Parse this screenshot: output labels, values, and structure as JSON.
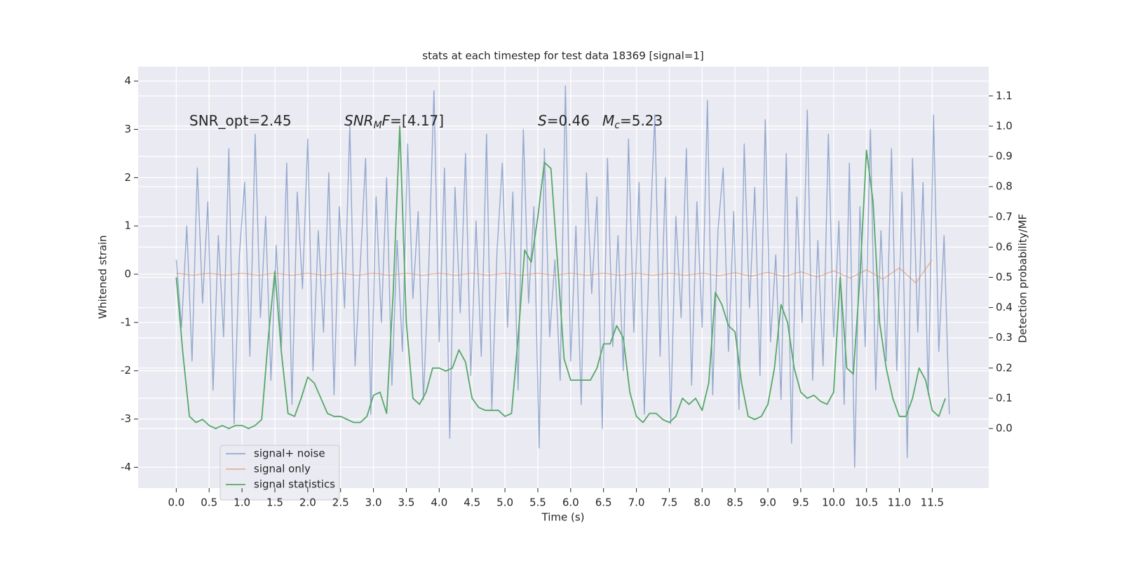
{
  "chart_data": {
    "type": "line",
    "title": "stats at each timestep for test data 18369 [signal=1]",
    "xlabel": "Time (s)",
    "ylabel": "Whitened strain",
    "y2label": "Detection probability/MF",
    "annotations": [
      [
        "SNR_opt=2.45"
      ],
      [
        "SNR",
        "M",
        "F",
        "=[4.17]"
      ],
      [
        "S",
        "=0.46",
        "M",
        "c",
        "=5.23"
      ]
    ],
    "xlim": [
      -0.58,
      12.36
    ],
    "xticks": [
      {
        "value": 0,
        "label": "0.0"
      },
      0.5,
      {
        "value": 1,
        "label": "1.0"
      },
      1.5,
      {
        "value": 2,
        "label": "2.0"
      },
      2.5,
      {
        "value": 3,
        "label": "3.0"
      },
      3.5,
      {
        "value": 4,
        "label": "4.0"
      },
      4.5,
      {
        "value": 5,
        "label": "5.0"
      },
      5.5,
      {
        "value": 6,
        "label": "6.0"
      },
      6.5,
      {
        "value": 7,
        "label": "7.0"
      },
      7.5,
      {
        "value": 8,
        "label": "8.0"
      },
      8.5,
      {
        "value": 9,
        "label": "9.0"
      },
      9.5,
      {
        "value": 10,
        "label": "10.0"
      },
      10.5,
      {
        "value": 11,
        "label": "11.0"
      },
      11.5
    ],
    "ylim": [
      -4.43,
      4.3
    ],
    "yticks": [
      -4,
      -3,
      -2,
      -1,
      0,
      1,
      2,
      3,
      4
    ],
    "y2lim": [
      -0.197,
      1.197
    ],
    "y2ticks": [
      {
        "value": 0,
        "label": "0.0"
      },
      0.1,
      0.2,
      0.3,
      0.4,
      0.5,
      0.6,
      0.7,
      0.8,
      0.9,
      {
        "value": 1,
        "label": "1.0"
      },
      1.1
    ],
    "grid": true,
    "legend": "lower left",
    "series": [
      {
        "name": "signal+ noise",
        "color": "#4c72b0",
        "x": [
          0,
          0.08,
          0.16,
          0.24,
          0.32,
          0.4,
          0.48,
          0.56,
          0.64,
          0.72,
          0.8,
          0.88,
          0.96,
          1.04,
          1.12,
          1.2,
          1.28,
          1.36,
          1.44,
          1.52,
          1.6,
          1.68,
          1.76,
          1.84,
          1.92,
          2.0,
          2.08,
          2.16,
          2.24,
          2.32,
          2.4,
          2.48,
          2.56,
          2.64,
          2.72,
          2.8,
          2.88,
          2.96,
          3.04,
          3.12,
          3.2,
          3.28,
          3.36,
          3.44,
          3.52,
          3.6,
          3.68,
          3.76,
          3.84,
          3.92,
          4.0,
          4.08,
          4.16,
          4.24,
          4.32,
          4.4,
          4.48,
          4.56,
          4.64,
          4.72,
          4.8,
          4.88,
          4.96,
          5.04,
          5.12,
          5.2,
          5.28,
          5.36,
          5.44,
          5.52,
          5.6,
          5.68,
          5.76,
          5.84,
          5.92,
          6.0,
          6.08,
          6.16,
          6.24,
          6.32,
          6.4,
          6.48,
          6.56,
          6.64,
          6.72,
          6.8,
          6.88,
          6.96,
          7.04,
          7.12,
          7.2,
          7.28,
          7.36,
          7.44,
          7.52,
          7.6,
          7.68,
          7.76,
          7.84,
          7.92,
          8.0,
          8.08,
          8.16,
          8.24,
          8.32,
          8.4,
          8.48,
          8.56,
          8.64,
          8.72,
          8.8,
          8.88,
          8.96,
          9.04,
          9.12,
          9.2,
          9.28,
          9.36,
          9.44,
          9.52,
          9.6,
          9.68,
          9.76,
          9.84,
          9.92,
          10.0,
          10.08,
          10.16,
          10.24,
          10.32,
          10.4,
          10.48,
          10.56,
          10.64,
          10.72,
          10.8,
          10.88,
          10.96,
          11.04,
          11.12,
          11.2,
          11.28,
          11.36,
          11.44,
          11.52,
          11.6,
          11.68,
          11.76
        ],
        "values": [
          0.3,
          -1.1,
          1.0,
          -1.8,
          2.2,
          -0.6,
          1.5,
          -2.4,
          0.8,
          -1.3,
          2.6,
          -3.1,
          0.4,
          1.9,
          -1.7,
          2.9,
          -0.9,
          1.2,
          -2.2,
          0.6,
          -1.5,
          2.3,
          -2.7,
          1.7,
          -0.3,
          2.8,
          -2.0,
          0.9,
          -1.2,
          2.1,
          -2.5,
          1.4,
          -0.7,
          3.1,
          -1.9,
          0.2,
          2.4,
          -2.9,
          1.6,
          -1.0,
          2.0,
          -2.3,
          0.7,
          -1.6,
          2.7,
          -0.5,
          1.3,
          -2.6,
          0.1,
          3.8,
          -1.4,
          2.2,
          -3.4,
          1.8,
          -0.8,
          2.5,
          -2.1,
          1.1,
          -1.7,
          2.9,
          -2.8,
          0.5,
          2.3,
          -1.1,
          1.7,
          -2.4,
          3.0,
          -0.6,
          1.4,
          -3.6,
          2.6,
          -1.3,
          0.3,
          -2.2,
          3.9,
          -1.8,
          1.0,
          -2.7,
          2.1,
          -0.4,
          1.6,
          -3.2,
          2.4,
          -1.5,
          0.8,
          -2.0,
          2.8,
          -1.2,
          1.9,
          -2.9,
          0.6,
          3.3,
          -1.7,
          2.0,
          -3.1,
          1.2,
          -0.9,
          2.6,
          -2.3,
          1.5,
          -1.1,
          3.6,
          -2.5,
          0.9,
          2.2,
          -1.6,
          1.3,
          -2.8,
          2.7,
          -0.7,
          1.8,
          -2.1,
          3.2,
          -1.4,
          0.4,
          -2.6,
          2.5,
          -3.5,
          1.6,
          -1.0,
          3.4,
          -2.2,
          0.7,
          -1.9,
          2.9,
          -1.3,
          1.1,
          -2.7,
          2.3,
          -4.0,
          1.4,
          -1.5,
          3.0,
          -2.4,
          0.9,
          -1.8,
          2.6,
          -2.0,
          1.7,
          -3.8,
          2.4,
          -1.2,
          1.9,
          -2.5,
          3.3,
          -1.6,
          0.8,
          -2.9
        ]
      },
      {
        "name": "signal only",
        "color": "#dd8452",
        "x": [
          0,
          0.25,
          0.5,
          0.75,
          1,
          1.25,
          1.5,
          1.75,
          2,
          2.25,
          2.5,
          2.75,
          3,
          3.25,
          3.5,
          3.75,
          4,
          4.25,
          4.5,
          4.75,
          5,
          5.25,
          5.5,
          5.75,
          6,
          6.25,
          6.5,
          6.75,
          7,
          7.25,
          7.5,
          7.75,
          8,
          8.25,
          8.5,
          8.75,
          9,
          9.25,
          9.5,
          9.75,
          10,
          10.25,
          10.5,
          10.75,
          11,
          11.25,
          11.5
        ],
        "values": [
          0.02,
          -0.02,
          0.02,
          -0.02,
          0.02,
          -0.02,
          0.02,
          -0.02,
          0.02,
          -0.02,
          0.02,
          -0.02,
          0.02,
          -0.02,
          0.02,
          -0.02,
          0.02,
          -0.02,
          0.02,
          -0.02,
          0.02,
          -0.02,
          0.02,
          -0.02,
          0.02,
          -0.02,
          0.02,
          -0.02,
          0.02,
          -0.02,
          0.02,
          -0.02,
          0.02,
          -0.03,
          0.03,
          -0.04,
          0.04,
          -0.05,
          0.05,
          -0.06,
          0.07,
          -0.08,
          0.09,
          -0.1,
          0.13,
          -0.18,
          0.3
        ]
      },
      {
        "name": "signal statistics",
        "color": "#55a868",
        "axis": "y2",
        "x": [
          0,
          0.1,
          0.2,
          0.3,
          0.4,
          0.5,
          0.6,
          0.7,
          0.8,
          0.9,
          1,
          1.1,
          1.2,
          1.3,
          1.4,
          1.5,
          1.6,
          1.7,
          1.8,
          1.9,
          2,
          2.1,
          2.2,
          2.3,
          2.4,
          2.5,
          2.6,
          2.7,
          2.8,
          2.9,
          3,
          3.1,
          3.2,
          3.3,
          3.4,
          3.5,
          3.6,
          3.7,
          3.8,
          3.9,
          4,
          4.1,
          4.2,
          4.3,
          4.4,
          4.5,
          4.6,
          4.7,
          4.8,
          4.9,
          5,
          5.1,
          5.2,
          5.3,
          5.4,
          5.5,
          5.6,
          5.7,
          5.8,
          5.9,
          6,
          6.1,
          6.2,
          6.3,
          6.4,
          6.5,
          6.6,
          6.7,
          6.8,
          6.9,
          7,
          7.1,
          7.2,
          7.3,
          7.4,
          7.5,
          7.6,
          7.7,
          7.8,
          7.9,
          8,
          8.1,
          8.2,
          8.3,
          8.4,
          8.5,
          8.6,
          8.7,
          8.8,
          8.9,
          9,
          9.1,
          9.2,
          9.3,
          9.4,
          9.5,
          9.6,
          9.7,
          9.8,
          9.9,
          10,
          10.1,
          10.2,
          10.3,
          10.4,
          10.5,
          10.6,
          10.7,
          10.8,
          10.9,
          11,
          11.1,
          11.2,
          11.3,
          11.4,
          11.5,
          11.6,
          11.7
        ],
        "values": [
          0.5,
          0.25,
          0.04,
          0.02,
          0.03,
          0.01,
          0.0,
          0.01,
          0.0,
          0.01,
          0.01,
          0.0,
          0.01,
          0.03,
          0.3,
          0.52,
          0.25,
          0.05,
          0.04,
          0.1,
          0.17,
          0.15,
          0.1,
          0.05,
          0.04,
          0.04,
          0.03,
          0.02,
          0.02,
          0.04,
          0.11,
          0.12,
          0.05,
          0.45,
          1.0,
          0.35,
          0.1,
          0.08,
          0.12,
          0.2,
          0.2,
          0.19,
          0.2,
          0.26,
          0.22,
          0.1,
          0.07,
          0.06,
          0.06,
          0.06,
          0.04,
          0.05,
          0.3,
          0.59,
          0.55,
          0.7,
          0.88,
          0.86,
          0.55,
          0.23,
          0.16,
          0.16,
          0.16,
          0.16,
          0.2,
          0.28,
          0.28,
          0.34,
          0.3,
          0.12,
          0.04,
          0.02,
          0.05,
          0.05,
          0.03,
          0.02,
          0.04,
          0.1,
          0.08,
          0.1,
          0.06,
          0.15,
          0.45,
          0.41,
          0.34,
          0.32,
          0.15,
          0.04,
          0.03,
          0.04,
          0.08,
          0.2,
          0.41,
          0.35,
          0.2,
          0.12,
          0.1,
          0.11,
          0.09,
          0.08,
          0.12,
          0.5,
          0.2,
          0.18,
          0.5,
          0.92,
          0.75,
          0.35,
          0.2,
          0.1,
          0.04,
          0.04,
          0.1,
          0.2,
          0.16,
          0.06,
          0.04,
          0.1
        ]
      }
    ]
  }
}
